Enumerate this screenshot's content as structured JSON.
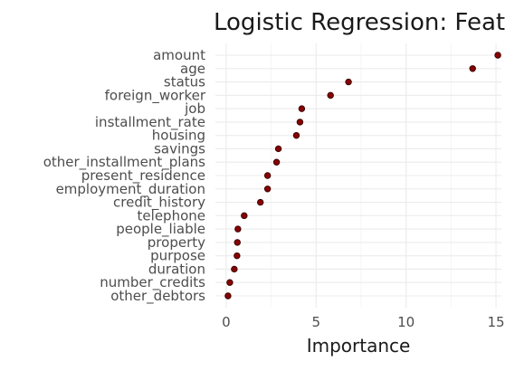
{
  "chart_data": {
    "type": "scatter",
    "title": "Logistic Regression: Feat",
    "xlabel": "Importance",
    "ylabel": "",
    "xlim": [
      -0.6,
      15.3
    ],
    "xticks": [
      0,
      5,
      10,
      15
    ],
    "grid": true,
    "point_color": "#8b0000",
    "categories": [
      "amount",
      "age",
      "status",
      "foreign_worker",
      "job",
      "installment_rate",
      "housing",
      "savings",
      "other_installment_plans",
      "present_residence",
      "employment_duration",
      "credit_history",
      "telephone",
      "people_liable",
      "property",
      "purpose",
      "duration",
      "number_credits",
      "other_debtors"
    ],
    "values": [
      15.1,
      13.7,
      6.8,
      5.8,
      4.2,
      4.1,
      3.9,
      2.9,
      2.8,
      2.3,
      2.3,
      1.9,
      1.0,
      0.65,
      0.62,
      0.6,
      0.45,
      0.2,
      0.1
    ]
  }
}
